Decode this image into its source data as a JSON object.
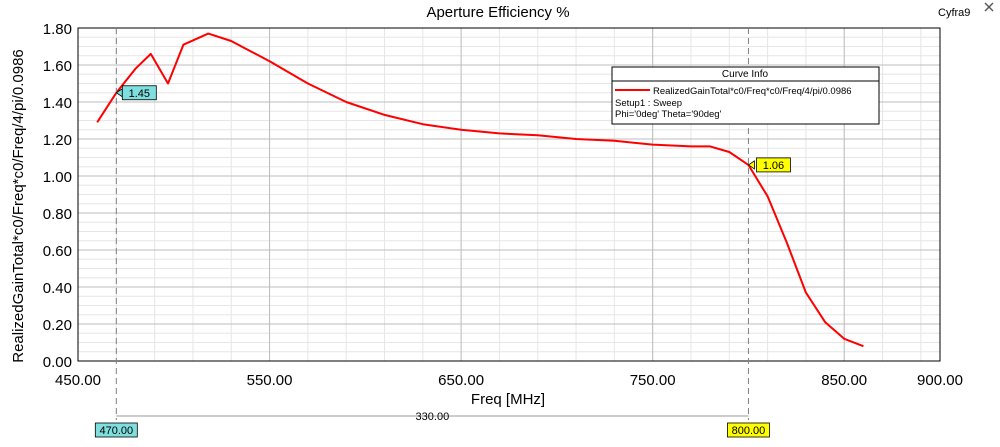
{
  "window": {
    "tag": "Cyfra9"
  },
  "legend": {
    "header": "Curve Info",
    "entry": "RealizedGainTotal*c0/Freq*c0/Freq/4/pi/0.0986",
    "line2": "Setup1 : Sweep",
    "line3": "Phi='0deg' Theta='90deg'"
  },
  "chart_data": {
    "type": "line",
    "title": "Aperture Efficiency %",
    "xlabel": "Freq [MHz]",
    "ylabel": "RealizedGainTotal*c0/Freq*c0/Freq/4/pi/0.0986",
    "xlim": [
      450,
      900
    ],
    "ylim": [
      0,
      1.8
    ],
    "xticks": [
      "450.00",
      "550.00",
      "650.00",
      "750.00",
      "850.00",
      "900.00"
    ],
    "xtick_values": [
      450,
      550,
      650,
      750,
      850,
      900
    ],
    "yticks": [
      "0.00",
      "0.20",
      "0.40",
      "0.60",
      "0.80",
      "1.00",
      "1.20",
      "1.40",
      "1.60",
      "1.80"
    ],
    "ytick_values": [
      0,
      0.2,
      0.4,
      0.6,
      0.8,
      1.0,
      1.2,
      1.4,
      1.6,
      1.8
    ],
    "grid": true,
    "legend_position": "top-right",
    "series": [
      {
        "name": "RealizedGainTotal*c0/Freq*c0/Freq/4/pi/0.0986",
        "color": "#ff0000",
        "x": [
          460,
          470,
          480,
          488,
          497,
          505,
          518,
          530,
          550,
          570,
          590,
          610,
          630,
          650,
          670,
          690,
          710,
          730,
          750,
          770,
          780,
          790,
          800,
          810,
          820,
          830,
          840,
          850,
          860
        ],
        "y": [
          1.29,
          1.45,
          1.58,
          1.66,
          1.5,
          1.71,
          1.77,
          1.73,
          1.62,
          1.5,
          1.4,
          1.33,
          1.28,
          1.25,
          1.23,
          1.22,
          1.2,
          1.19,
          1.17,
          1.16,
          1.16,
          1.13,
          1.06,
          0.89,
          0.64,
          0.37,
          0.21,
          0.12,
          0.08
        ]
      }
    ],
    "markers": [
      {
        "x": 470,
        "y": 1.45,
        "label": "1.45",
        "x_label": "470.00",
        "color": "#7fdfdf"
      },
      {
        "x": 800,
        "y": 1.06,
        "label": "1.06",
        "x_label": "800.00",
        "color": "#ffff00"
      }
    ],
    "delta": {
      "label": "330.00"
    }
  }
}
